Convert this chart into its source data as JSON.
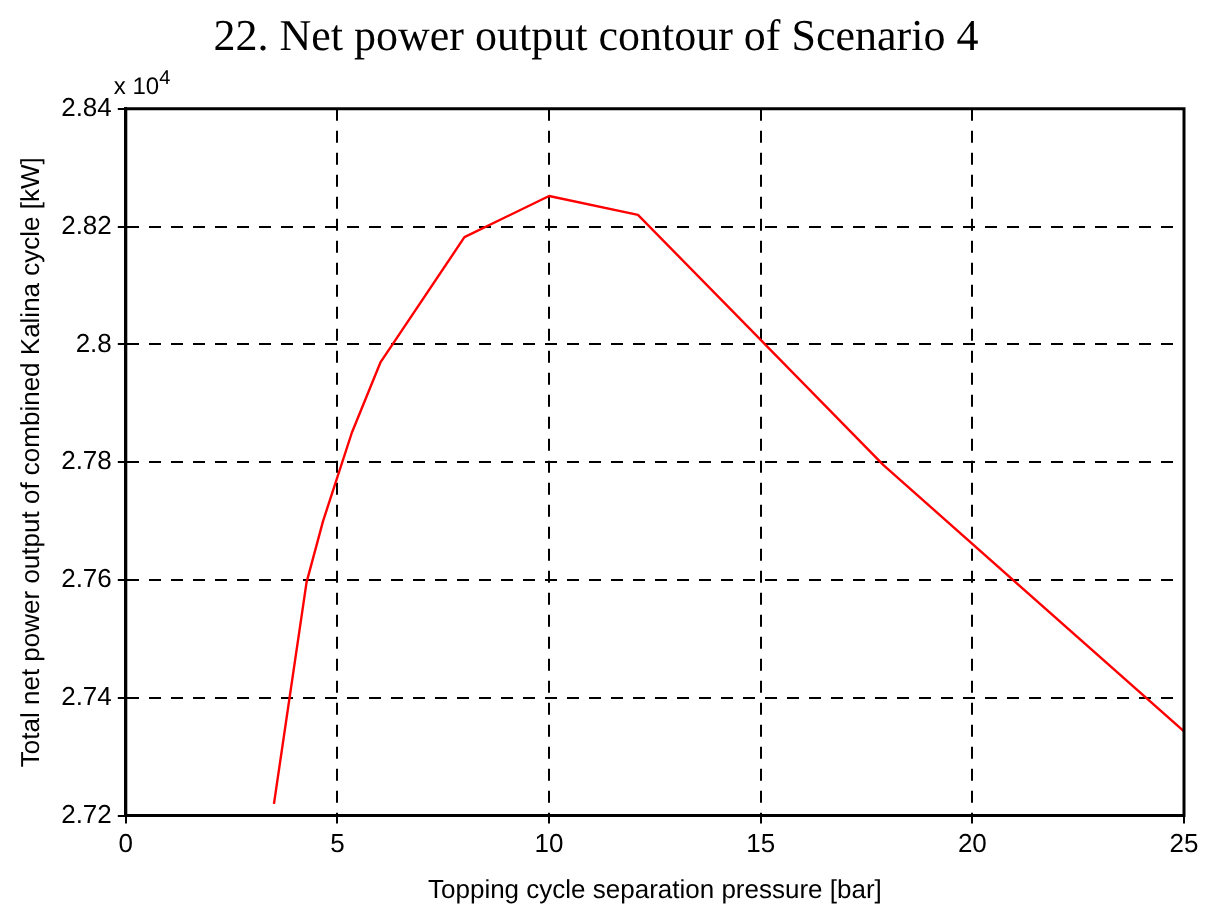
{
  "chart_data": {
    "type": "line",
    "title": "22. Net power output contour of Scenario 4",
    "xlabel": "Topping cycle separation pressure [bar]",
    "ylabel": "Total net power output of combined Kalina cycle [kW]",
    "annotations": [
      "x 10$^{4}$"
    ],
    "x": [
      3.5,
      4.27,
      4.66,
      5.34,
      6.02,
      8.0,
      10.0,
      12.1,
      17.9,
      25.0
    ],
    "series": [
      {
        "color": "#ff0000",
        "values": [
          2.722,
          2.7596,
          2.77,
          2.785,
          2.797,
          2.8182,
          2.8252,
          2.822,
          2.7795,
          2.7343
        ]
      }
    ],
    "xlim": [
      0,
      25
    ],
    "xticks": [
      0,
      5,
      10,
      15,
      20,
      25
    ],
    "ylim": [
      2.72,
      2.84
    ],
    "yticks": [
      2.72,
      2.74,
      2.76,
      2.78,
      2.8,
      2.82,
      2.84
    ],
    "grid": true,
    "legend": false,
    "marker": "none",
    "line_style": "solid"
  }
}
